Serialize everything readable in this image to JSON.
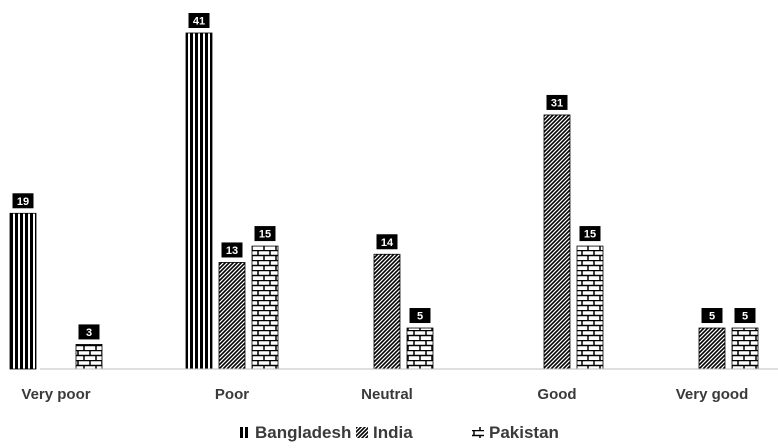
{
  "chart_data": {
    "type": "bar",
    "title": "",
    "xlabel": "",
    "ylabel": "",
    "categories": [
      "Very poor",
      "Poor",
      "Neutral",
      "Good",
      "Very good"
    ],
    "series": [
      {
        "name": "Bangladesh",
        "pattern": "vertical-stripes",
        "values": [
          19,
          41,
          null,
          null,
          null
        ]
      },
      {
        "name": "India",
        "pattern": "diagonal-hatch",
        "values": [
          null,
          13,
          14,
          31,
          5
        ]
      },
      {
        "name": "Pakistan",
        "pattern": "brick",
        "values": [
          3,
          15,
          5,
          15,
          5
        ]
      }
    ],
    "ylim": [
      0,
      41
    ],
    "grid": false,
    "legend_position": "bottom",
    "data_labels": true
  },
  "colors": {
    "mark": "#000000",
    "text": "#3a3a3a",
    "background": "#ffffff",
    "axis": "#bfbfbf"
  }
}
